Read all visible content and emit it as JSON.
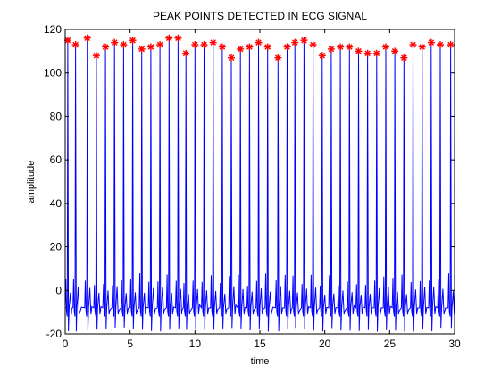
{
  "chart_data": {
    "type": "line",
    "title": "PEAK POINTS DETECTED IN ECG SIGNAL",
    "xlabel": "time",
    "ylabel": "amplitude",
    "xlim": [
      0,
      30
    ],
    "ylim": [
      -20,
      120
    ],
    "xticks": [
      "0",
      "5",
      "10",
      "15",
      "20",
      "25",
      "30"
    ],
    "yticks": [
      "-20",
      "0",
      "20",
      "40",
      "60",
      "80",
      "100",
      "120"
    ],
    "grid": false,
    "series": [
      {
        "kind": "ecg-signal",
        "color": "#0000ff",
        "peaks_x": [
          0.2,
          0.8,
          1.7,
          2.4,
          3.1,
          3.8,
          4.5,
          5.2,
          5.9,
          6.6,
          7.3,
          8.0,
          8.7,
          9.3,
          10.0,
          10.7,
          11.4,
          12.1,
          12.8,
          13.5,
          14.2,
          14.9,
          15.6,
          16.4,
          17.1,
          17.7,
          18.4,
          19.1,
          19.8,
          20.5,
          21.2,
          21.9,
          22.6,
          23.3,
          24.0,
          24.7,
          25.4,
          26.1,
          26.8,
          27.5,
          28.2,
          28.9,
          29.7
        ],
        "peaks_y": [
          115,
          113,
          116,
          108,
          112,
          114,
          113,
          115,
          111,
          112,
          113,
          116,
          116,
          109,
          113,
          113,
          114,
          112,
          107,
          111,
          112,
          114,
          112,
          107,
          112,
          114,
          115,
          113,
          108,
          111,
          112,
          112,
          110,
          109,
          109,
          112,
          110,
          107,
          113,
          112,
          114,
          113,
          113
        ],
        "baseline": -8,
        "s_depth": -18,
        "p_wave": 5,
        "t_wave": 0
      },
      {
        "kind": "detected-peaks",
        "marker": "*",
        "color": "#ff0000"
      }
    ]
  }
}
